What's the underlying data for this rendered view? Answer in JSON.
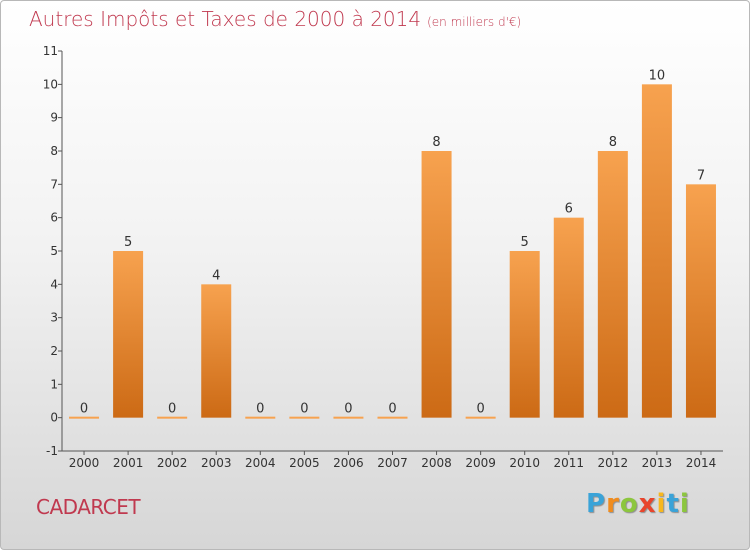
{
  "title": "Autres Impôts et Taxes de 2000 à 2014",
  "subtitle": "(en milliers d'€)",
  "place": "CADARCET",
  "logo": "Proxiti",
  "colors": {
    "accent": "#c0394f",
    "bar_top": "#f7a24f",
    "bar_bottom": "#cc6a15"
  },
  "chart_data": {
    "type": "bar",
    "categories": [
      "2000",
      "2001",
      "2002",
      "2003",
      "2004",
      "2005",
      "2006",
      "2007",
      "2008",
      "2009",
      "2010",
      "2011",
      "2012",
      "2013",
      "2014"
    ],
    "values": [
      0,
      5,
      0,
      4,
      0,
      0,
      0,
      0,
      8,
      0,
      5,
      6,
      8,
      10,
      7
    ],
    "data_labels": [
      "0",
      "5",
      "0",
      "4",
      "0",
      "0",
      "0",
      "0",
      "8",
      "0",
      "5",
      "6",
      "8",
      "10",
      "7"
    ],
    "ylim": [
      -1,
      11
    ],
    "yticks": [
      {
        "v": -1,
        "label": "-1"
      },
      {
        "v": 0,
        "label": "0"
      },
      {
        "v": 1,
        "label": "1"
      },
      {
        "v": 2,
        "label": "2"
      },
      {
        "v": 3,
        "label": "3"
      },
      {
        "v": 4,
        "label": "4"
      },
      {
        "v": 5,
        "label": "5"
      },
      {
        "v": 6,
        "label": "6"
      },
      {
        "v": 7,
        "label": "7"
      },
      {
        "v": 8,
        "label": "8"
      },
      {
        "v": 9,
        "label": "9"
      },
      {
        "v": 10,
        "label": "10"
      },
      {
        "v": 11,
        "label": "11"
      }
    ],
    "xlabel": "",
    "ylabel": "",
    "grid": false,
    "legend": "none"
  }
}
